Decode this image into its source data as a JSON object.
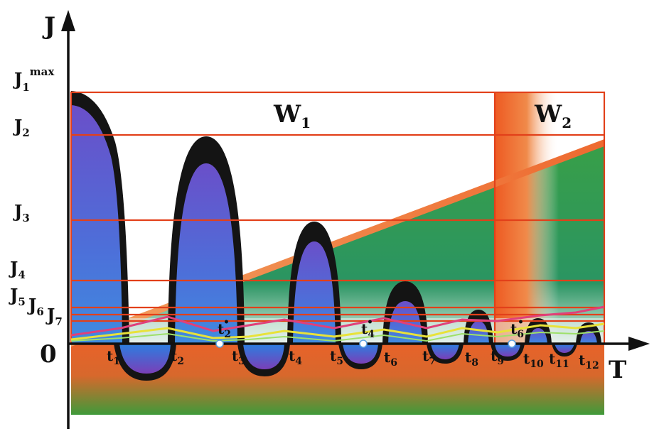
{
  "axes": {
    "y_name": "J",
    "x_name": "T",
    "origin": "0"
  },
  "y_levels": [
    {
      "main": "J",
      "sub": "1",
      "sup": "max"
    },
    {
      "main": "J",
      "sub": "2"
    },
    {
      "main": "J",
      "sub": "3"
    },
    {
      "main": "J",
      "sub": "4"
    },
    {
      "main": "J",
      "sub": "5"
    },
    {
      "main": "J",
      "sub": "6"
    },
    {
      "main": "J",
      "sub": "7"
    }
  ],
  "time_marks": [
    {
      "main": "t",
      "sub": "1"
    },
    {
      "main": "t",
      "sub": "2"
    },
    {
      "main": "t",
      "sub": "3"
    },
    {
      "main": "t",
      "sub": "4"
    },
    {
      "main": "t",
      "sub": "5"
    },
    {
      "main": "t",
      "sub": "6"
    },
    {
      "main": "t",
      "sub": "7"
    },
    {
      "main": "t",
      "sub": "8"
    },
    {
      "main": "t",
      "sub": "9"
    },
    {
      "main": "t",
      "sub": "10"
    },
    {
      "main": "t",
      "sub": "11"
    },
    {
      "main": "t",
      "sub": "12"
    }
  ],
  "special_marks": [
    {
      "main": "t",
      "sub": "2",
      "dot": "•"
    },
    {
      "main": "t",
      "sub": "4",
      "dot": "•"
    },
    {
      "main": "t",
      "sub": "6",
      "dot": "•"
    }
  ],
  "regions": [
    {
      "main": "W",
      "sub": "1"
    },
    {
      "main": "W",
      "sub": "2"
    }
  ],
  "colors": {
    "level_line": "#e2401a",
    "arch_fill": "#5b55c8",
    "arch_outline": "#151515",
    "rising_band": "#f07a38",
    "green": "#2f9e45",
    "orange_base": "#e8622a",
    "pink": "#e0407a",
    "yellow": "#e8e23a"
  }
}
